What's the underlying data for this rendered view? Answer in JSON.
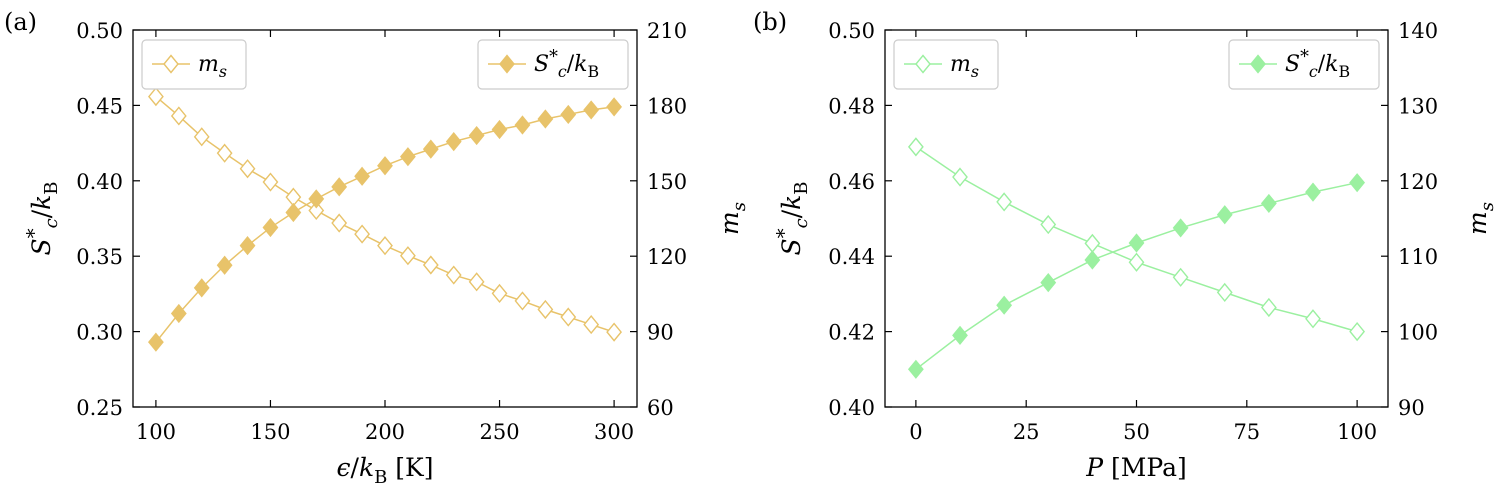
{
  "chart_data": [
    {
      "type": "line",
      "panel_label": "(a)",
      "color": "#E8C36A",
      "x": [
        100,
        110,
        120,
        130,
        140,
        150,
        160,
        170,
        180,
        190,
        200,
        210,
        220,
        230,
        240,
        250,
        260,
        270,
        280,
        290,
        300
      ],
      "xlim": [
        90,
        310
      ],
      "xticks": [
        "100",
        "150",
        "200",
        "250",
        "300"
      ],
      "xlabel": "ϵ/k_B [K]",
      "ylabel_left": "S*_c/k_B",
      "ylim_left": [
        0.25,
        0.5
      ],
      "yticks_left": [
        "0.25",
        "0.30",
        "0.35",
        "0.40",
        "0.45",
        "0.50"
      ],
      "ylabel_right": "m_s",
      "ylim_right": [
        60,
        210
      ],
      "yticks_right": [
        "60",
        "90",
        "120",
        "150",
        "180",
        "210"
      ],
      "series": [
        {
          "name": "m_s",
          "axis": "right",
          "marker": "diamond-open",
          "legend_position": "top-left",
          "values": [
            183.5,
            175.8,
            167.5,
            161.0,
            154.8,
            149.5,
            143.5,
            138.2,
            133.2,
            128.8,
            124.2,
            120.2,
            116.5,
            112.5,
            109.8,
            105.2,
            102.2,
            98.8,
            95.8,
            92.8,
            89.8
          ]
        },
        {
          "name": "S*_c/k_B",
          "axis": "left",
          "marker": "diamond-filled",
          "legend_position": "top-right",
          "values": [
            0.293,
            0.312,
            0.329,
            0.344,
            0.357,
            0.369,
            0.379,
            0.388,
            0.396,
            0.403,
            0.41,
            0.416,
            0.421,
            0.426,
            0.43,
            0.434,
            0.437,
            0.441,
            0.444,
            0.447,
            0.449
          ]
        }
      ]
    },
    {
      "type": "line",
      "panel_label": "(b)",
      "color": "#9BF0A0",
      "x": [
        0,
        10,
        20,
        30,
        40,
        50,
        60,
        70,
        80,
        90,
        100
      ],
      "xlim": [
        -7,
        107
      ],
      "xticks": [
        "0",
        "25",
        "50",
        "75",
        "100"
      ],
      "xlabel": "P [MPa]",
      "ylabel_left": "S*_c/k_B",
      "ylim_left": [
        0.4,
        0.5
      ],
      "yticks_left": [
        "0.40",
        "0.42",
        "0.44",
        "0.46",
        "0.48",
        "0.50"
      ],
      "ylabel_right": "m_s",
      "ylim_right": [
        90,
        140
      ],
      "yticks_right": [
        "90",
        "100",
        "110",
        "120",
        "130",
        "140"
      ],
      "series": [
        {
          "name": "m_s",
          "axis": "right",
          "marker": "diamond-open",
          "legend_position": "top-left",
          "values": [
            124.5,
            120.5,
            117.2,
            114.2,
            111.7,
            109.2,
            107.2,
            105.2,
            103.2,
            101.7,
            100.0
          ]
        },
        {
          "name": "S*_c/k_B",
          "axis": "left",
          "marker": "diamond-filled",
          "legend_position": "top-right",
          "values": [
            0.41,
            0.419,
            0.427,
            0.433,
            0.439,
            0.4435,
            0.4475,
            0.451,
            0.454,
            0.457,
            0.4595
          ]
        }
      ]
    }
  ]
}
